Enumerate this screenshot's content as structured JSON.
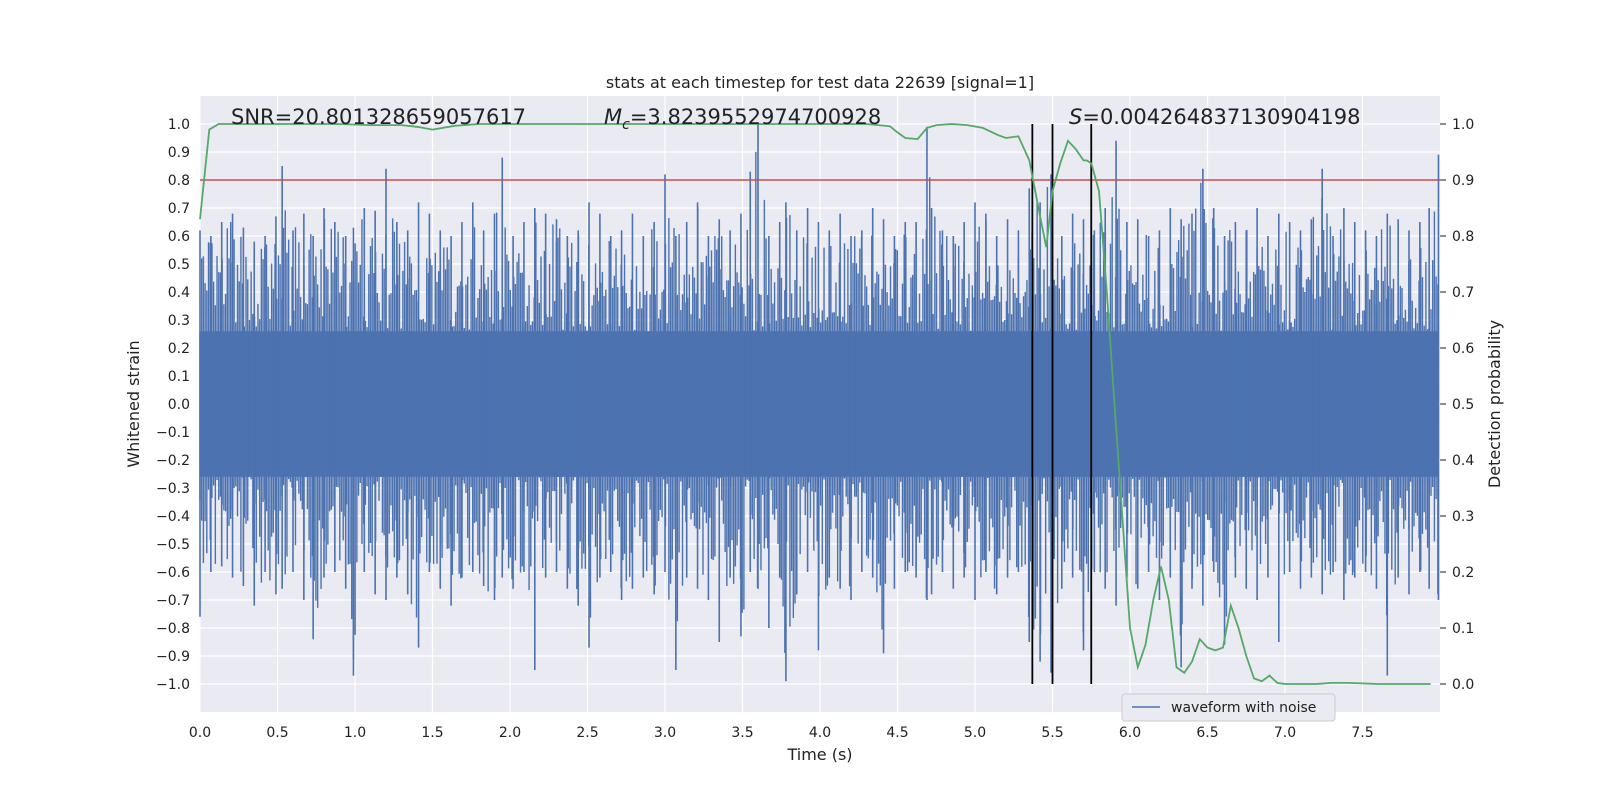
{
  "chart_data": {
    "type": "line",
    "title": "stats at each timestep for test data 22639 [signal=1]",
    "xlabel": "Time (s)",
    "ylabel": "Whitened strain",
    "y2label": "Detection probability",
    "xlim": [
      0.0,
      8.0
    ],
    "ylim": [
      -1.1,
      1.1
    ],
    "y2lim": [
      -0.05,
      1.05
    ],
    "xticks": [
      "0.0",
      "0.5",
      "1.0",
      "1.5",
      "2.0",
      "2.5",
      "3.0",
      "3.5",
      "4.0",
      "4.5",
      "5.0",
      "5.5",
      "6.0",
      "6.5",
      "7.0",
      "7.5"
    ],
    "yticks": [
      "1.0",
      "0.9",
      "0.8",
      "0.7",
      "0.6",
      "0.5",
      "0.4",
      "0.3",
      "0.2",
      "0.1",
      "0.0",
      "−0.1",
      "−0.2",
      "−0.3",
      "−0.4",
      "−0.5",
      "−0.6",
      "−0.7",
      "−0.8",
      "−0.9",
      "−1.0"
    ],
    "y2ticks": [
      "1.0",
      "0.9",
      "0.8",
      "0.7",
      "0.6",
      "0.5",
      "0.4",
      "0.3",
      "0.2",
      "0.1",
      "0.0"
    ],
    "grid": true,
    "legend": {
      "position": "bottom-right",
      "entries": [
        "waveform with noise"
      ]
    },
    "annotations": {
      "snr": "SNR=20.801328659057617",
      "mc": "=3.8239552974700928",
      "mc_symbol": "M",
      "mc_sub": "c",
      "s": "=0.004264837130904198",
      "s_symbol": "S"
    },
    "threshold": {
      "value": 0.9,
      "axis": "right",
      "color": "#c44e52"
    },
    "vlines": [
      5.37,
      5.5,
      5.75
    ],
    "colors": {
      "waveform": "#4c72b0",
      "probability": "#55a868",
      "threshold": "#c44e52",
      "vline": "#000000",
      "plot_bg": "#eaeaf2"
    },
    "series": [
      {
        "name": "waveform with noise",
        "axis": "left",
        "x": [
          0.0,
          0.07,
          0.14,
          0.21,
          0.28,
          0.35,
          0.42,
          0.49,
          0.53,
          0.6,
          0.67,
          0.73,
          0.8,
          0.87,
          0.94,
          0.99,
          1.06,
          1.13,
          1.2,
          1.27,
          1.34,
          1.41,
          1.48,
          1.55,
          1.62,
          1.69,
          1.76,
          1.83,
          1.9,
          1.95,
          2.02,
          2.09,
          2.16,
          2.23,
          2.3,
          2.37,
          2.44,
          2.51,
          2.58,
          2.65,
          2.72,
          2.79,
          2.86,
          2.93,
          3.0,
          3.07,
          3.14,
          3.21,
          3.28,
          3.35,
          3.42,
          3.49,
          3.55,
          3.6,
          3.67,
          3.74,
          3.78,
          3.85,
          3.92,
          3.99,
          4.06,
          4.13,
          4.2,
          4.27,
          4.34,
          4.41,
          4.48,
          4.55,
          4.62,
          4.69,
          4.72,
          4.79,
          4.86,
          4.93,
          5.0,
          5.07,
          5.14,
          5.21,
          5.28,
          5.35,
          5.42,
          5.49,
          5.56,
          5.63,
          5.7,
          5.77,
          5.84,
          5.91,
          5.98,
          6.05,
          6.12,
          6.19,
          6.26,
          6.33,
          6.4,
          6.47,
          6.54,
          6.61,
          6.68,
          6.75,
          6.82,
          6.89,
          6.96,
          7.03,
          7.1,
          7.17,
          7.24,
          7.31,
          7.38,
          7.45,
          7.52,
          7.59,
          7.66,
          7.73,
          7.8,
          7.87,
          7.93,
          7.99
        ],
        "upper": [
          0.62,
          0.6,
          0.65,
          0.68,
          0.63,
          0.58,
          0.6,
          0.67,
          0.85,
          0.62,
          0.68,
          0.6,
          0.7,
          0.65,
          0.6,
          0.63,
          0.7,
          0.69,
          0.84,
          0.65,
          0.62,
          0.72,
          0.68,
          0.62,
          0.6,
          0.65,
          0.72,
          0.62,
          0.68,
          0.88,
          0.6,
          0.65,
          0.7,
          0.68,
          0.66,
          0.6,
          0.62,
          0.72,
          0.68,
          0.6,
          0.62,
          0.68,
          0.6,
          0.65,
          0.82,
          0.6,
          0.65,
          0.72,
          0.6,
          0.66,
          0.62,
          0.68,
          0.83,
          1.0,
          0.6,
          0.65,
          0.72,
          0.62,
          0.7,
          0.65,
          0.62,
          0.68,
          0.6,
          0.62,
          0.7,
          0.66,
          0.6,
          0.65,
          0.65,
          0.99,
          0.7,
          0.62,
          0.6,
          0.65,
          0.72,
          0.68,
          0.6,
          0.66,
          0.62,
          0.77,
          0.72,
          0.82,
          0.6,
          0.68,
          0.66,
          0.62,
          0.7,
          0.94,
          0.65,
          0.66,
          0.6,
          0.62,
          0.7,
          0.66,
          0.68,
          0.84,
          0.7,
          0.6,
          0.65,
          0.62,
          0.7,
          0.6,
          0.68,
          0.65,
          0.62,
          0.66,
          0.84,
          0.6,
          0.7,
          0.65,
          0.62,
          0.6,
          0.68,
          0.66,
          0.62,
          0.65,
          0.7,
          0.89
        ],
        "lower": [
          -0.76,
          -0.6,
          -0.58,
          -0.62,
          -0.65,
          -0.72,
          -0.6,
          -0.68,
          -0.66,
          -0.6,
          -0.7,
          -0.84,
          -0.62,
          -0.6,
          -0.66,
          -0.97,
          -0.6,
          -0.68,
          -0.7,
          -0.62,
          -0.68,
          -0.87,
          -0.6,
          -0.66,
          -0.72,
          -0.62,
          -0.6,
          -0.65,
          -0.7,
          -0.62,
          -0.66,
          -0.6,
          -0.95,
          -0.62,
          -0.6,
          -0.66,
          -0.72,
          -0.87,
          -0.62,
          -0.6,
          -0.7,
          -0.66,
          -0.62,
          -0.68,
          -0.6,
          -0.95,
          -0.62,
          -0.66,
          -0.7,
          -0.85,
          -0.62,
          -0.83,
          -0.6,
          -0.66,
          -0.8,
          -0.62,
          -0.99,
          -0.68,
          -0.6,
          -0.88,
          -0.62,
          -0.66,
          -0.7,
          -0.6,
          -0.62,
          -0.89,
          -0.66,
          -0.6,
          -0.62,
          -0.7,
          -0.68,
          -0.6,
          -0.66,
          -0.62,
          -0.7,
          -0.6,
          -0.68,
          -0.62,
          -0.6,
          -0.85,
          -0.92,
          -0.96,
          -0.66,
          -0.62,
          -0.88,
          -0.6,
          -0.66,
          -0.72,
          -0.62,
          -0.66,
          -0.6,
          -0.7,
          -0.62,
          -0.94,
          -0.66,
          -0.72,
          -0.6,
          -0.86,
          -0.62,
          -0.66,
          -0.7,
          -0.62,
          -0.85,
          -0.6,
          -0.66,
          -0.62,
          -0.68,
          -0.6,
          -0.7,
          -0.62,
          -0.6,
          -0.66,
          -0.97,
          -0.62,
          -0.68,
          -0.6,
          -0.66,
          -0.7
        ]
      },
      {
        "name": "",
        "axis": "right",
        "x": [
          0.0,
          0.06,
          0.12,
          0.3,
          0.6,
          0.9,
          1.1,
          1.3,
          1.4,
          1.5,
          1.65,
          1.8,
          2.0,
          2.3,
          2.6,
          3.0,
          3.5,
          4.0,
          4.3,
          4.45,
          4.5,
          4.55,
          4.63,
          4.69,
          4.75,
          4.85,
          4.95,
          5.05,
          5.15,
          5.2,
          5.28,
          5.35,
          5.42,
          5.46,
          5.5,
          5.55,
          5.6,
          5.65,
          5.7,
          5.72,
          5.75,
          5.8,
          5.85,
          5.9,
          5.95,
          6.0,
          6.05,
          6.1,
          6.15,
          6.2,
          6.25,
          6.3,
          6.35,
          6.4,
          6.45,
          6.5,
          6.55,
          6.6,
          6.65,
          6.7,
          6.75,
          6.8,
          6.85,
          6.9,
          6.95,
          7.0,
          7.1,
          7.2,
          7.3,
          7.4,
          7.5,
          7.6,
          7.7,
          7.8,
          7.9,
          7.94
        ],
        "y": [
          0.83,
          0.99,
          1.0,
          1.0,
          1.0,
          1.0,
          0.998,
          0.998,
          0.995,
          0.99,
          0.997,
          1.0,
          1.0,
          1.0,
          1.0,
          1.0,
          1.0,
          1.0,
          1.0,
          0.996,
          0.985,
          0.975,
          0.973,
          0.993,
          0.998,
          1.0,
          0.998,
          0.993,
          0.98,
          0.975,
          0.978,
          0.935,
          0.835,
          0.78,
          0.88,
          0.93,
          0.97,
          0.955,
          0.935,
          0.935,
          0.93,
          0.88,
          0.7,
          0.5,
          0.3,
          0.1,
          0.03,
          0.07,
          0.15,
          0.21,
          0.15,
          0.03,
          0.02,
          0.04,
          0.08,
          0.065,
          0.06,
          0.065,
          0.14,
          0.1,
          0.05,
          0.01,
          0.005,
          0.015,
          0.002,
          0.0,
          0.0,
          0.0,
          0.002,
          0.002,
          0.001,
          0.0,
          0.0,
          0.0,
          0.0,
          0.0
        ]
      }
    ]
  }
}
